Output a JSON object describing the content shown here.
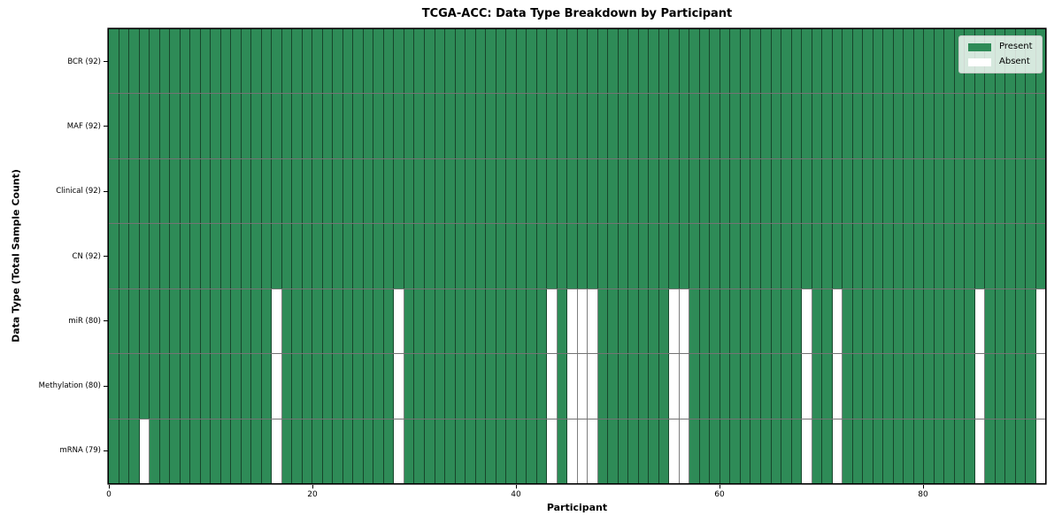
{
  "chart_data": {
    "type": "heatmap",
    "title": "TCGA-ACC: Data Type Breakdown by Participant",
    "xlabel": "Participant",
    "ylabel": "Data Type (Total Sample Count)",
    "x_ticks": [
      0,
      20,
      40,
      60,
      80
    ],
    "x_range": [
      0,
      92
    ],
    "n_participants": 92,
    "grid": "cell-borders",
    "legend_position": "upper-right",
    "colors": {
      "present": "#2e8b57",
      "absent": "#ffffff"
    },
    "rows": [
      {
        "label": "BCR (92)",
        "name": "BCR",
        "total": 92,
        "absent_participants": []
      },
      {
        "label": "MAF (92)",
        "name": "MAF",
        "total": 92,
        "absent_participants": []
      },
      {
        "label": "Clinical (92)",
        "name": "Clinical",
        "total": 92,
        "absent_participants": []
      },
      {
        "label": "CN (92)",
        "name": "CN",
        "total": 92,
        "absent_participants": []
      },
      {
        "label": "miR (80)",
        "name": "miR",
        "total": 80,
        "absent_participants": [
          16,
          28,
          43,
          45,
          46,
          47,
          55,
          56,
          68,
          71,
          85,
          91
        ]
      },
      {
        "label": "Methylation (80)",
        "name": "Methylation",
        "total": 80,
        "absent_participants": [
          16,
          28,
          43,
          45,
          46,
          47,
          55,
          56,
          68,
          71,
          85,
          91
        ]
      },
      {
        "label": "mRNA (79)",
        "name": "mRNA",
        "total": 79,
        "absent_participants": [
          3,
          16,
          28,
          43,
          45,
          46,
          47,
          55,
          56,
          68,
          71,
          85,
          91
        ]
      }
    ],
    "legend": [
      {
        "label": "Present",
        "color": "#2e8b57"
      },
      {
        "label": "Absent",
        "color": "#ffffff"
      }
    ]
  }
}
